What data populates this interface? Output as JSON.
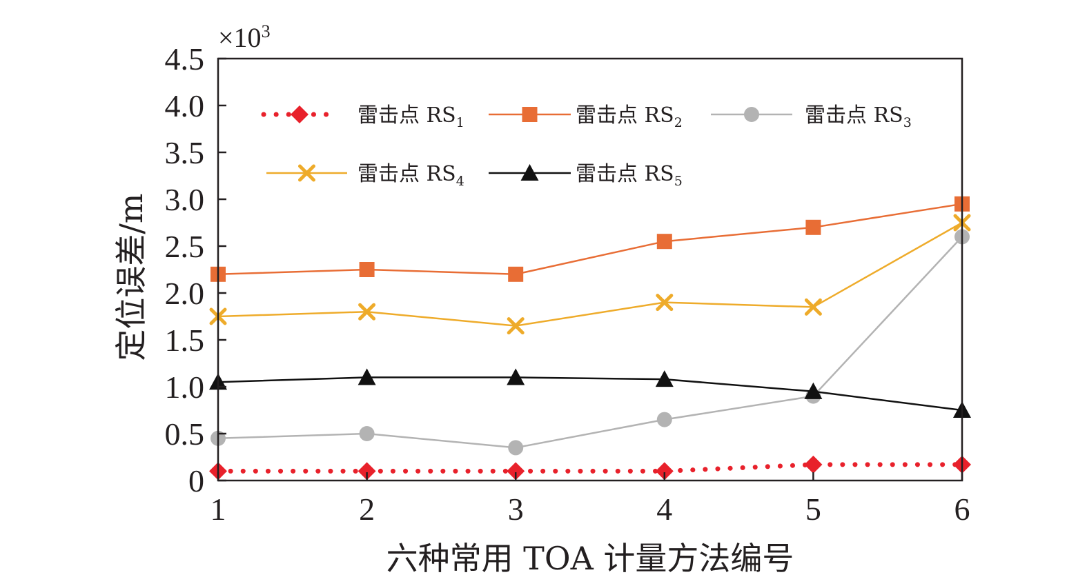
{
  "chart_data": {
    "type": "line",
    "xlabel": "六种常用 TOA 计量方法编号",
    "ylabel": "定位误差/m",
    "y_multiplier": {
      "base": "×10",
      "exponent": "3"
    },
    "x": [
      1,
      2,
      3,
      4,
      5,
      6
    ],
    "x_tick_labels": [
      "1",
      "2",
      "3",
      "4",
      "5",
      "6"
    ],
    "xlim": [
      1,
      6
    ],
    "ylim": [
      0,
      4.5
    ],
    "y_ticks": [
      0,
      0.5,
      1.0,
      1.5,
      2.0,
      2.5,
      3.0,
      3.5,
      4.0,
      4.5
    ],
    "y_tick_labels": [
      "0",
      "0.5",
      "1.0",
      "1.5",
      "2.0",
      "2.5",
      "3.0",
      "3.5",
      "4.0",
      "4.5"
    ],
    "grid": false,
    "legend_position": "top",
    "series": [
      {
        "name": "雷击点 RS",
        "name_sub": "1",
        "values": [
          0.1,
          0.1,
          0.1,
          0.1,
          0.17,
          0.17
        ],
        "color": "#e8212b",
        "line_style": "dotted",
        "marker": "diamond"
      },
      {
        "name": "雷击点 RS",
        "name_sub": "2",
        "values": [
          2.2,
          2.25,
          2.2,
          2.55,
          2.7,
          2.95
        ],
        "color": "#e86d35",
        "line_style": "solid",
        "marker": "square"
      },
      {
        "name": "雷击点 RS",
        "name_sub": "3",
        "values": [
          0.45,
          0.5,
          0.35,
          0.65,
          0.9,
          2.6
        ],
        "color": "#b3b3b3",
        "line_style": "solid",
        "marker": "circle"
      },
      {
        "name": "雷击点 RS",
        "name_sub": "4",
        "values": [
          1.75,
          1.8,
          1.65,
          1.9,
          1.85,
          2.75
        ],
        "color": "#eeab2a",
        "line_style": "solid",
        "marker": "cross"
      },
      {
        "name": "雷击点 RS",
        "name_sub": "5",
        "values": [
          1.05,
          1.1,
          1.1,
          1.08,
          0.95,
          0.75
        ],
        "color": "#111111",
        "line_style": "solid",
        "marker": "triangle"
      }
    ]
  }
}
